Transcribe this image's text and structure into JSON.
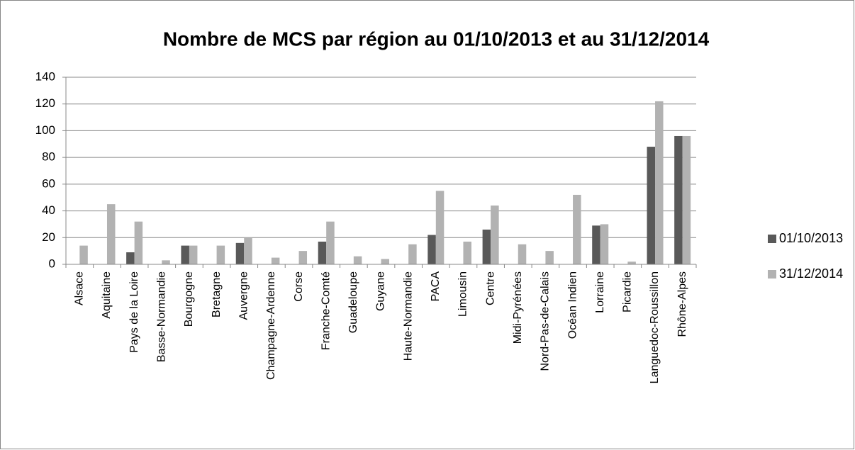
{
  "chart_data": {
    "type": "bar",
    "title": "Nombre de MCS par région au 01/10/2013 et au 31/12/2014",
    "categories": [
      "Alsace",
      "Aquitaine",
      "Pays de la Loire",
      "Basse-Normandie",
      "Bourgogne",
      "Bretagne",
      "Auvergne",
      "Champagne-Ardenne",
      "Corse",
      "Franche-Comté",
      "Guadeloupe",
      "Guyane",
      "Haute-Normandie",
      "PACA",
      "Limousin",
      "Centre",
      "Midi-Pyrénées",
      "Nord-Pas-de-Calais",
      "Océan Indien",
      "Lorraine",
      "Picardie",
      "Languedoc-Roussillon",
      "Rhône-Alpes"
    ],
    "series": [
      {
        "name": "01/10/2013",
        "color": "#595959",
        "values": [
          0,
          0,
          9,
          0,
          14,
          0,
          16,
          0,
          0,
          17,
          0,
          0,
          0,
          22,
          0,
          26,
          0,
          0,
          0,
          29,
          0,
          88,
          96
        ]
      },
      {
        "name": "31/12/2014",
        "color": "#b2b2b2",
        "values": [
          14,
          45,
          32,
          3,
          14,
          14,
          20,
          5,
          10,
          32,
          6,
          4,
          15,
          55,
          17,
          44,
          15,
          10,
          52,
          30,
          2,
          122,
          96
        ]
      }
    ],
    "ylim": [
      0,
      140
    ],
    "yticks": [
      0,
      20,
      40,
      60,
      80,
      100,
      120,
      140
    ],
    "grid": true,
    "legend": "right"
  }
}
